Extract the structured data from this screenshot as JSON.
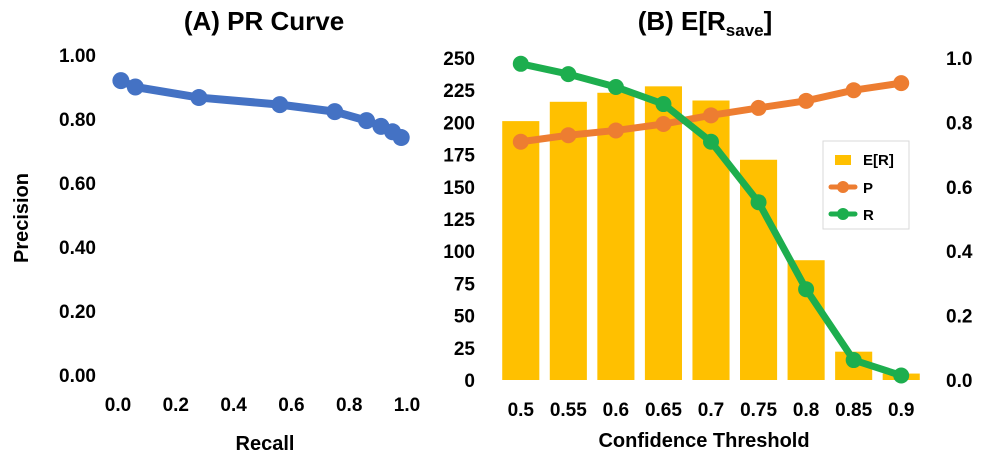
{
  "chart_data": [
    {
      "type": "line",
      "title": "(A) PR Curve",
      "xlabel": "Recall",
      "ylabel": "Precision",
      "xlim": [
        0,
        1
      ],
      "ylim": [
        0,
        1
      ],
      "x_ticks": [
        "0.0",
        "0.2",
        "0.4",
        "0.6",
        "0.8",
        "1.0"
      ],
      "y_ticks": [
        "0.00",
        "0.20",
        "0.40",
        "0.60",
        "0.80",
        "1.00"
      ],
      "series": [
        {
          "color": "#4472C4",
          "points": [
            {
              "x": 0.01,
              "y": 0.92
            },
            {
              "x": 0.06,
              "y": 0.9
            },
            {
              "x": 0.28,
              "y": 0.867
            },
            {
              "x": 0.56,
              "y": 0.845
            },
            {
              "x": 0.75,
              "y": 0.823
            },
            {
              "x": 0.86,
              "y": 0.795
            },
            {
              "x": 0.91,
              "y": 0.777
            },
            {
              "x": 0.95,
              "y": 0.76
            },
            {
              "x": 0.98,
              "y": 0.742
            }
          ]
        }
      ]
    },
    {
      "type": "bar+line",
      "title_prefix": "(B) E[R",
      "title_sub": "save",
      "title_suffix": "]",
      "xlabel": "Confidence Threshold",
      "categories": [
        "0.5",
        "0.55",
        "0.6",
        "0.65",
        "0.7",
        "0.75",
        "0.8",
        "0.85",
        "0.9"
      ],
      "ylim_left": [
        0,
        250
      ],
      "ylim_right": [
        0,
        1
      ],
      "y_left_ticks": [
        "0",
        "25",
        "50",
        "75",
        "100",
        "125",
        "150",
        "175",
        "200",
        "225",
        "250"
      ],
      "y_right_ticks": [
        "0.0",
        "0.2",
        "0.4",
        "0.6",
        "0.8",
        "1.0"
      ],
      "legend_position": "right-middle",
      "bars": {
        "name": "E[R]",
        "color": "#FFC000",
        "axis": "left",
        "values": [
          201,
          216,
          223,
          228,
          217,
          171,
          93,
          22,
          5
        ]
      },
      "lines": [
        {
          "name": "P",
          "color": "#ED7D31",
          "axis": "right",
          "values": [
            0.74,
            0.76,
            0.775,
            0.795,
            0.822,
            0.845,
            0.867,
            0.9,
            0.922
          ]
        },
        {
          "name": "R",
          "color": "#1DAE4E",
          "axis": "right",
          "values": [
            0.982,
            0.95,
            0.91,
            0.857,
            0.74,
            0.552,
            0.282,
            0.062,
            0.014
          ]
        }
      ]
    }
  ]
}
